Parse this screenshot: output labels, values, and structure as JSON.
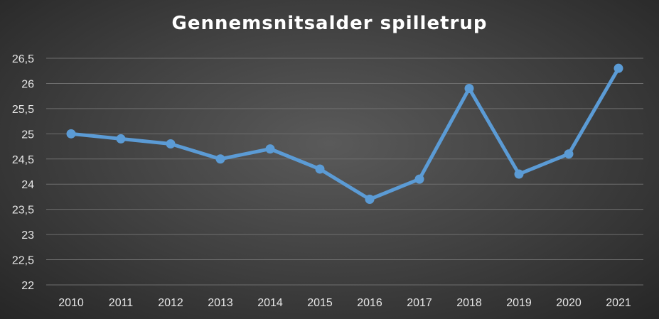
{
  "chart_data": {
    "type": "line",
    "title": "Gennemsnitsalder spilletrup",
    "xlabel": "",
    "ylabel": "",
    "categories": [
      "2010",
      "2011",
      "2012",
      "2013",
      "2014",
      "2015",
      "2016",
      "2017",
      "2018",
      "2019",
      "2020",
      "2021"
    ],
    "series": [
      {
        "values": [
          25.0,
          24.9,
          24.8,
          24.5,
          24.7,
          24.3,
          23.7,
          24.1,
          25.9,
          24.2,
          24.6,
          26.3
        ]
      }
    ],
    "ylim": [
      22,
      26.5
    ],
    "yticks": [
      "22",
      "22,5",
      "23",
      "23,5",
      "24",
      "24,5",
      "25",
      "25,5",
      "26",
      "26,5"
    ],
    "ytick_values": [
      22,
      22.5,
      23,
      23.5,
      24,
      24.5,
      25,
      25.5,
      26,
      26.5
    ],
    "grid": true,
    "legend": "none",
    "colors": {
      "line": "#5b9bd5",
      "grid": "#6e6e6e",
      "text": "#e6e6e6"
    }
  }
}
